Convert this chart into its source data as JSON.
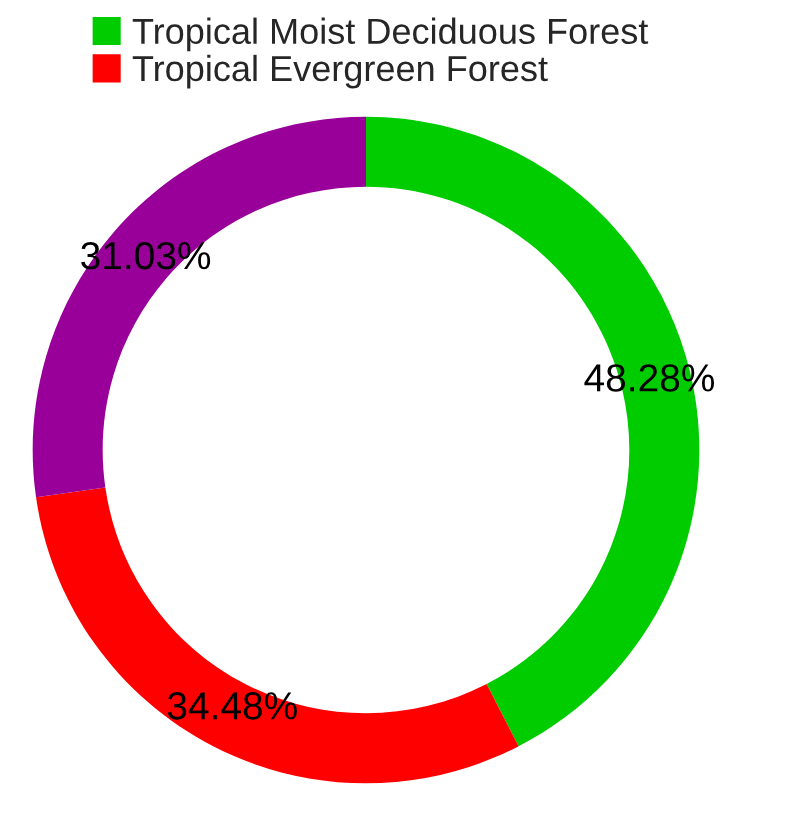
{
  "chart_data": {
    "type": "donut",
    "categories": [
      "Tropical Moist Deciduous Forest",
      "Tropical Evergreen Forest",
      null
    ],
    "values": [
      48.28,
      34.48,
      31.03
    ],
    "colors": [
      "#00cc00",
      "#ff0000",
      "#990099"
    ],
    "value_labels": [
      "48.28%",
      "34.48%",
      "31.03%"
    ],
    "legend": "top left"
  }
}
